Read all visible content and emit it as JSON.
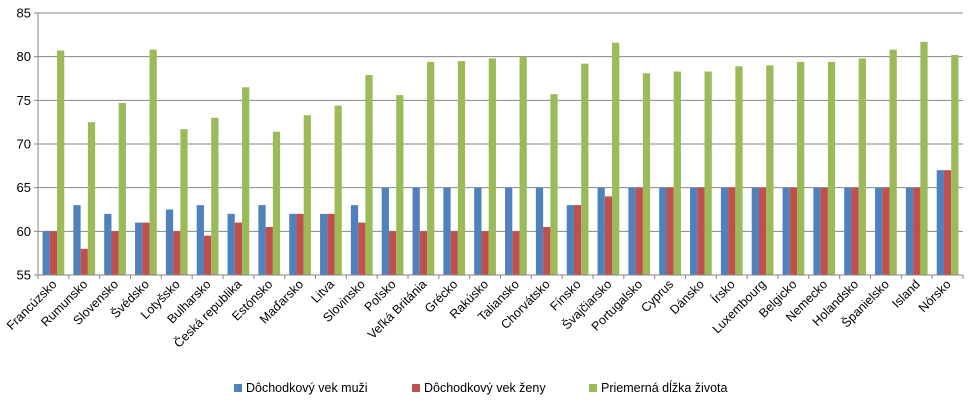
{
  "chart_data": {
    "type": "bar",
    "categories": [
      "Francúzsko",
      "Rumunsko",
      "Slovensko",
      "Švédsko",
      "Lotyšsko",
      "Bulharsko",
      "Česká republika",
      "Estónsko",
      "Maďarsko",
      "Litva",
      "Slovinsko",
      "Poľsko",
      "Veľká Británia",
      "Grécko",
      "Rakúsko",
      "Taliansko",
      "Chorvátsko",
      "Fínsko",
      "Švajčiarsko",
      "Portugalsko",
      "Cyprus",
      "Dánsko",
      "Írsko",
      "Luxembourg",
      "Belgicko",
      "Nemecko",
      "Holandsko",
      "Španielsko",
      "Island",
      "Nórsko"
    ],
    "series": [
      {
        "name": "Dôchodkový vek muži",
        "color": "#4F81BD",
        "values": [
          60,
          63,
          62,
          61,
          62.5,
          63,
          62,
          63,
          62,
          62,
          63,
          65,
          65,
          65,
          65,
          65,
          65,
          63,
          65,
          65,
          65,
          65,
          65,
          65,
          65,
          65,
          65,
          65,
          65,
          67
        ]
      },
      {
        "name": "Dôchodkový vek ženy",
        "color": "#C0504D",
        "values": [
          60,
          58,
          60,
          61,
          60,
          59.5,
          61,
          60.5,
          62,
          62,
          61,
          60,
          60,
          60,
          60,
          60,
          60.5,
          63,
          64,
          65,
          65,
          65,
          65,
          65,
          65,
          65,
          65,
          65,
          65,
          67
        ]
      },
      {
        "name": "Priemerná dĺžka života",
        "color": "#9BBB59",
        "values": [
          80.7,
          72.5,
          74.7,
          80.8,
          71.7,
          73,
          76.5,
          71.4,
          73.3,
          74.4,
          77.9,
          75.6,
          79.4,
          79.5,
          79.8,
          80,
          75.7,
          79.2,
          81.6,
          78.1,
          78.3,
          78.3,
          78.9,
          79,
          79.4,
          79.4,
          79.8,
          80.8,
          81.7,
          80.2
        ]
      }
    ],
    "ylim": [
      55,
      85
    ],
    "yticks": [
      55,
      60,
      65,
      70,
      75,
      80,
      85
    ],
    "grid": true,
    "legend_position": "bottom",
    "title": "",
    "xlabel": "",
    "ylabel": ""
  }
}
